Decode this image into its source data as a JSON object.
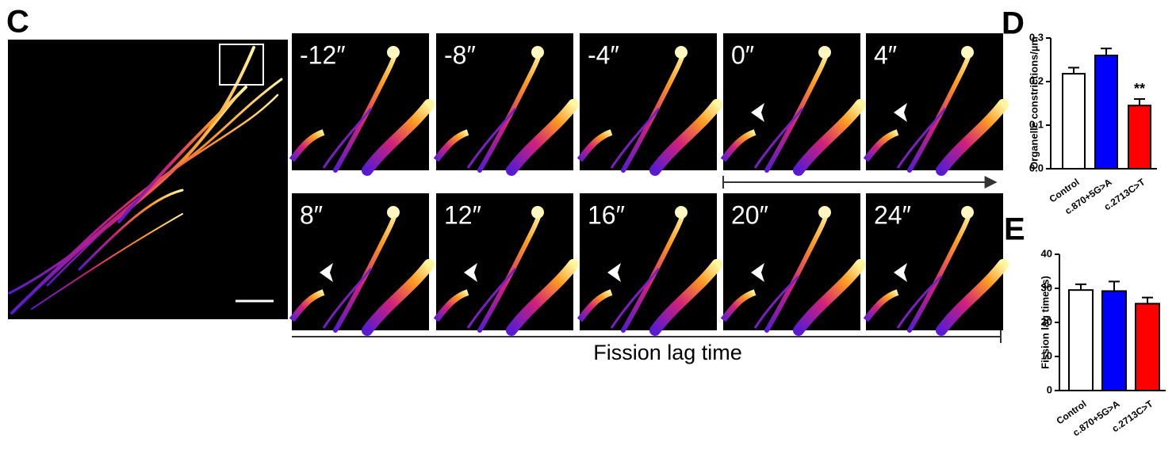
{
  "panel_labels": {
    "c": "C",
    "d": "D",
    "e": "E"
  },
  "time_labels": [
    "-12″",
    "-8″",
    "-4″",
    "0″",
    "4″",
    "8″",
    "12″",
    "16″",
    "20″",
    "24″"
  ],
  "fission_label": "Fission lag time",
  "chart_data": [
    {
      "type": "bar",
      "y_label": "Organelle constrictions/µm",
      "categories": [
        "Control",
        "c.870+5G>A",
        "c.2713C>T"
      ],
      "values": [
        0.218,
        0.26,
        0.145
      ],
      "errors": [
        0.014,
        0.016,
        0.015
      ],
      "colors": [
        "#ffffff",
        "#0000ff",
        "#ff0000"
      ],
      "ylim": [
        0,
        0.3
      ],
      "yticks": [
        {
          "value": 0,
          "label": "0.0"
        },
        0.1,
        0.2,
        0.3
      ],
      "annotation": "**"
    },
    {
      "type": "bar",
      "y_label": "Fission lag time (s)",
      "categories": [
        "Control",
        "c.870+5G>A",
        "c.2713C>T"
      ],
      "values": [
        29.5,
        29.2,
        25.5
      ],
      "errors": [
        1.7,
        2.8,
        1.8
      ],
      "colors": [
        "#ffffff",
        "#0000ff",
        "#ff0000"
      ],
      "ylim": [
        0,
        40
      ],
      "yticks": [
        0,
        10,
        20,
        30,
        40
      ]
    }
  ]
}
